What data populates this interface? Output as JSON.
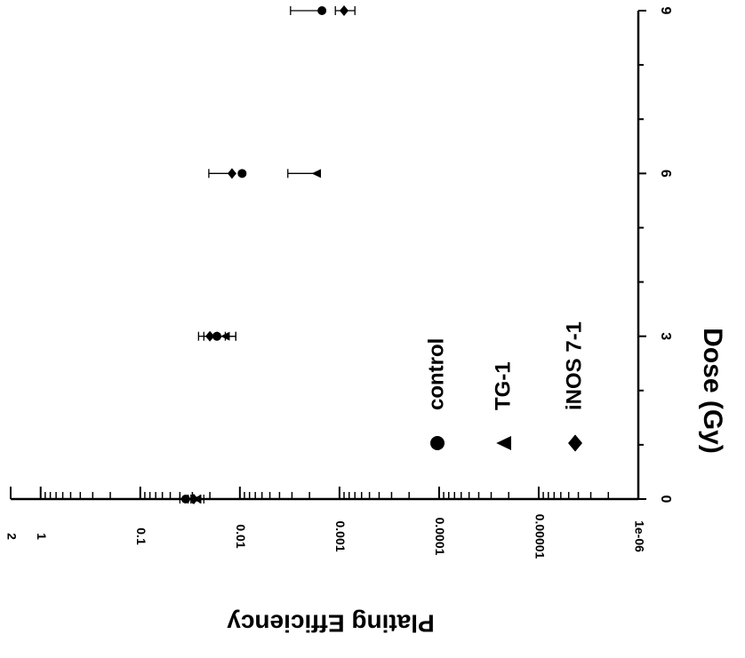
{
  "chart_data": {
    "type": "scatter",
    "title": "",
    "xlabel": "Dose (Gy)",
    "ylabel": "Plating Efficiency",
    "xlim": [
      0,
      9
    ],
    "ylim": [
      1e-06,
      2
    ],
    "y_scale": "log",
    "x_ticks": [
      "0",
      "3",
      "6",
      "9"
    ],
    "y_ticks": [
      "1e-06",
      "0.00001",
      "0.0001",
      "0.001",
      "0.01",
      "0.1",
      "1",
      "2"
    ],
    "orientation": "rotated 90 degrees clockwise",
    "legend_position": "bottom-left",
    "series": [
      {
        "name": "control",
        "marker": "circle",
        "points": [
          {
            "x": 0,
            "y": 0.035,
            "err_low": 0.005,
            "err_high": 0.005
          },
          {
            "x": 3,
            "y": 0.017,
            "err_low": 0.006,
            "err_high": 0.006
          },
          {
            "x": 6,
            "y": 0.0095,
            "err_low": 0,
            "err_high": 0
          },
          {
            "x": 9,
            "y": 0.0015,
            "err_low": 0,
            "err_high": 0.0016
          }
        ]
      },
      {
        "name": "TG-1",
        "marker": "triangle",
        "points": [
          {
            "x": 0,
            "y": 0.027,
            "err_low": 0.004,
            "err_high": 0.004
          },
          {
            "x": 3,
            "y": 0.014,
            "err_low": 0.003,
            "err_high": 0.003
          },
          {
            "x": 6,
            "y": 0.0017,
            "err_low": 0,
            "err_high": 0.0016
          }
        ]
      },
      {
        "name": "iNOS 7-1",
        "marker": "diamond",
        "points": [
          {
            "x": 0,
            "y": 0.029,
            "err_low": 0.004,
            "err_high": 0.004
          },
          {
            "x": 3,
            "y": 0.02,
            "err_low": 0.006,
            "err_high": 0.006
          },
          {
            "x": 6,
            "y": 0.012,
            "err_low": 0,
            "err_high": 0.0085
          },
          {
            "x": 9,
            "y": 0.0009,
            "err_low": 0.0002,
            "err_high": 0.0002
          }
        ]
      }
    ]
  }
}
